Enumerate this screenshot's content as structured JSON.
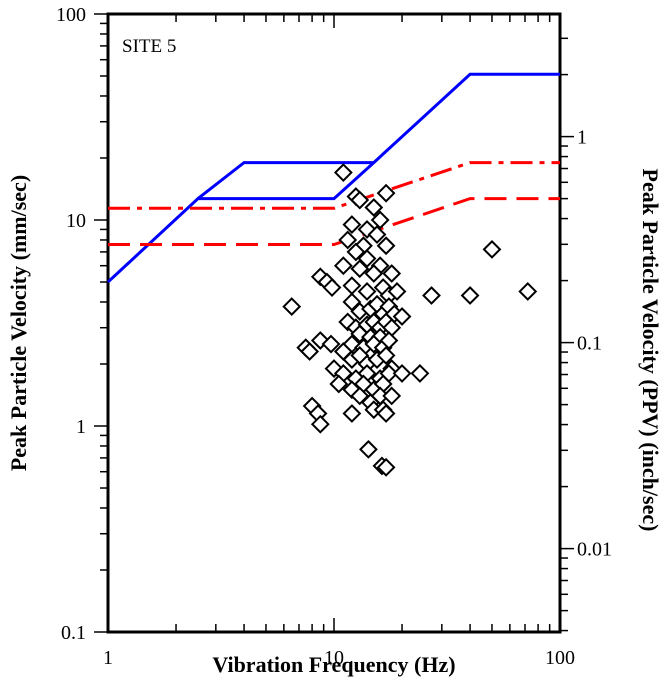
{
  "chart_data": {
    "type": "scatter",
    "annotation": "SITE 5",
    "xlabel": "Vibration Frequency (Hz)",
    "ylabel": "Peak Particle Velocity (mm/sec)",
    "ylabel_right": "Peak Particle Velocity (PPV) (inch/sec)",
    "x_scale": "log",
    "y_scale": "log",
    "xlim": [
      1,
      100
    ],
    "ylim": [
      0.1,
      100
    ],
    "y2lim_inch_per_sec": [
      0.003937,
      3.937
    ],
    "x_ticks": [
      "1",
      "10",
      "100"
    ],
    "y_ticks": [
      "0.1",
      "1",
      "10",
      "100"
    ],
    "y2_ticks": [
      "0.01",
      "0.1",
      "1"
    ],
    "grid": false,
    "colors": {
      "criterion_solid": "#0000ff",
      "criterion_dashed": "#ff0000",
      "markers": "#000000"
    },
    "lines": [
      {
        "style": "solid",
        "color": "#0000ff",
        "x": [
          1,
          2.5,
          10,
          15,
          40,
          100
        ],
        "y": [
          5,
          12.7,
          12.7,
          19,
          51,
          51
        ]
      },
      {
        "style": "solid",
        "color": "#0000ff",
        "x": [
          2.5,
          4,
          15
        ],
        "y": [
          12.7,
          19,
          19
        ]
      },
      {
        "style": "dash-dot",
        "color": "#ff0000",
        "x": [
          1,
          10,
          40,
          100
        ],
        "y": [
          11.4,
          11.4,
          19,
          19
        ]
      },
      {
        "style": "dashed",
        "color": "#ff0000",
        "x": [
          1,
          10,
          40,
          100
        ],
        "y": [
          7.6,
          7.6,
          12.7,
          12.7
        ]
      }
    ],
    "series": [
      {
        "marker": "diamond",
        "points": [
          [
            11,
            17
          ],
          [
            12.5,
            13
          ],
          [
            13,
            12.5
          ],
          [
            15,
            11.5
          ],
          [
            17,
            13.5
          ],
          [
            16,
            10
          ],
          [
            12,
            9.5
          ],
          [
            14,
            9
          ],
          [
            11.5,
            8
          ],
          [
            13.5,
            7.5
          ],
          [
            15.5,
            8.5
          ],
          [
            17,
            7.5
          ],
          [
            12.5,
            7
          ],
          [
            14,
            6.5
          ],
          [
            16,
            6
          ],
          [
            11,
            6
          ],
          [
            13,
            5.8
          ],
          [
            15,
            5.5
          ],
          [
            18,
            5.5
          ],
          [
            8.7,
            5.3
          ],
          [
            9.3,
            5
          ],
          [
            9.8,
            4.7
          ],
          [
            12,
            4.8
          ],
          [
            14,
            4.5
          ],
          [
            16.5,
            4.7
          ],
          [
            17.5,
            4.3
          ],
          [
            19,
            4.5
          ],
          [
            6.5,
            3.8
          ],
          [
            12,
            4
          ],
          [
            13,
            3.6
          ],
          [
            14.5,
            3.7
          ],
          [
            15.5,
            3.9
          ],
          [
            16.5,
            3.5
          ],
          [
            17.5,
            3.8
          ],
          [
            18.5,
            3.5
          ],
          [
            20,
            3.4
          ],
          [
            27,
            4.3
          ],
          [
            40,
            4.3
          ],
          [
            50,
            7.2
          ],
          [
            72,
            4.5
          ],
          [
            11.5,
            3.2
          ],
          [
            12.5,
            3
          ],
          [
            14,
            3.1
          ],
          [
            15,
            3.2
          ],
          [
            16,
            3
          ],
          [
            17,
            3.2
          ],
          [
            18,
            3
          ],
          [
            13,
            2.8
          ],
          [
            14.5,
            2.7
          ],
          [
            16,
            2.7
          ],
          [
            12,
            2.5
          ],
          [
            13.5,
            2.4
          ],
          [
            15,
            2.5
          ],
          [
            16.5,
            2.4
          ],
          [
            17.5,
            2.6
          ],
          [
            7.5,
            2.4
          ],
          [
            7.8,
            2.3
          ],
          [
            8.7,
            2.6
          ],
          [
            9.7,
            2.5
          ],
          [
            11,
            2.3
          ],
          [
            12,
            2.1
          ],
          [
            13,
            2.2
          ],
          [
            14,
            2
          ],
          [
            15.5,
            2.1
          ],
          [
            17,
            2.2
          ],
          [
            18,
            1.9
          ],
          [
            10,
            1.9
          ],
          [
            11,
            1.8
          ],
          [
            12.5,
            1.7
          ],
          [
            14,
            1.8
          ],
          [
            16,
            1.7
          ],
          [
            17.5,
            1.8
          ],
          [
            20,
            1.8
          ],
          [
            24,
            1.8
          ],
          [
            10.5,
            1.6
          ],
          [
            12,
            1.5
          ],
          [
            13.5,
            1.6
          ],
          [
            15,
            1.5
          ],
          [
            16.5,
            1.6
          ],
          [
            13,
            1.4
          ],
          [
            14.5,
            1.3
          ],
          [
            16,
            1.4
          ],
          [
            18,
            1.4
          ],
          [
            12,
            1.15
          ],
          [
            15,
            1.2
          ],
          [
            16.5,
            1.2
          ],
          [
            17,
            1.15
          ],
          [
            8,
            1.25
          ],
          [
            8.5,
            1.15
          ],
          [
            8.7,
            1.02
          ],
          [
            14.2,
            0.77
          ],
          [
            16.3,
            0.64
          ],
          [
            17,
            0.63
          ]
        ]
      }
    ]
  }
}
